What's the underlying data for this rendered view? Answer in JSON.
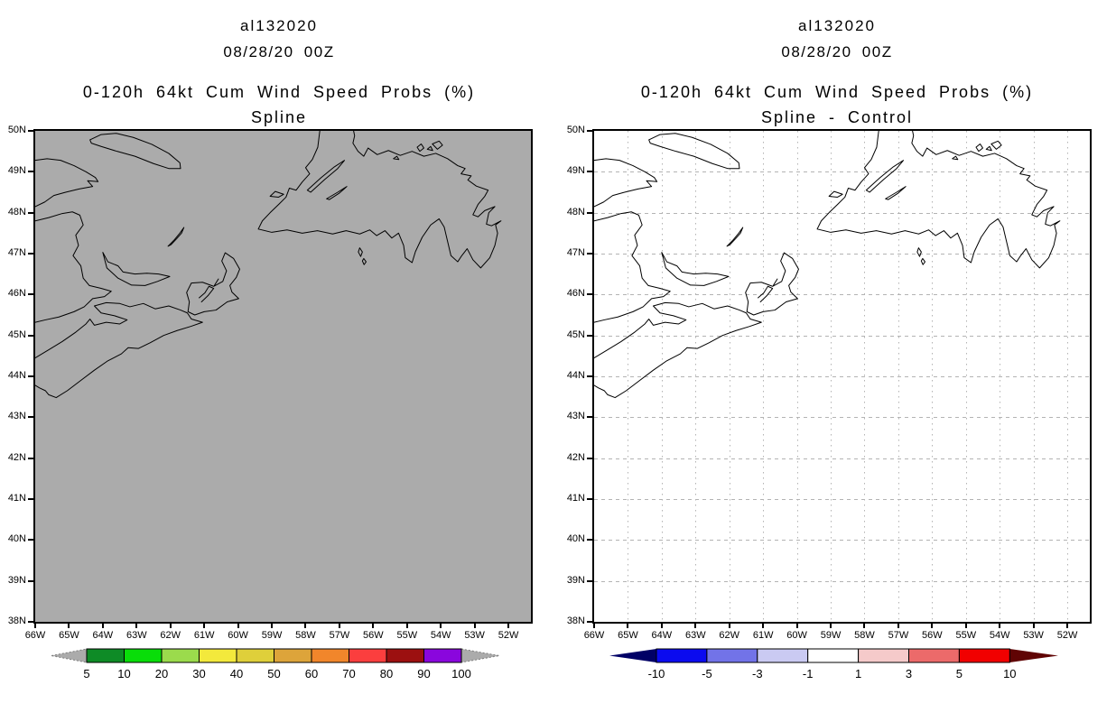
{
  "figure": {
    "background": "#ffffff",
    "map_border_color": "#000000",
    "coastline_color": "#000000"
  },
  "axes": {
    "lat_ticks": [
      "50N",
      "49N",
      "48N",
      "47N",
      "46N",
      "45N",
      "44N",
      "43N",
      "42N",
      "41N",
      "40N",
      "39N",
      "38N"
    ],
    "lon_ticks": [
      "66W",
      "65W",
      "64W",
      "63W",
      "62W",
      "61W",
      "60W",
      "59W",
      "58W",
      "57W",
      "56W",
      "55W",
      "54W",
      "53W",
      "52W"
    ]
  },
  "panels": [
    {
      "header": {
        "storm_id": "al132020",
        "init_time": "08/28/20 00Z"
      },
      "title": "0-120h 64kt Cum Wind Speed Probs (%)",
      "subtitle": "Spline",
      "map": {
        "background": "#ababab",
        "grid": false,
        "grid_color": "#b3b3b3"
      },
      "colorbar": {
        "labels": [
          "5",
          "10",
          "20",
          "30",
          "40",
          "50",
          "60",
          "70",
          "80",
          "90",
          "100"
        ],
        "colors": [
          "#0e8b26",
          "#09dd09",
          "#9bdb4c",
          "#f3e93c",
          "#dfcf3a",
          "#dda43a",
          "#f1862b",
          "#fb3e3e",
          "#9c1010",
          "#8a06dd"
        ],
        "under_arrow": "#ababab",
        "over_arrow": "#ababab",
        "arrow_dashed": true
      }
    },
    {
      "header": {
        "storm_id": "al132020",
        "init_time": "08/28/20 00Z"
      },
      "title": "0-120h 64kt Cum Wind Speed Probs (%)",
      "subtitle": "Spline - Control",
      "map": {
        "background": "#ffffff",
        "grid": true,
        "grid_color": "#b3b3b3"
      },
      "colorbar": {
        "labels": [
          "-10",
          "-5",
          "-3",
          "-1",
          "1",
          "3",
          "5",
          "10"
        ],
        "colors": [
          "#0b0bef",
          "#7273e8",
          "#cacaf2",
          "#ffffff",
          "#f5caca",
          "#ec6a6a",
          "#f10000"
        ],
        "under_arrow": "#000066",
        "over_arrow": "#600404",
        "arrow_dashed": false
      }
    }
  ],
  "chart_data": [
    {
      "type": "heatmap",
      "panel": "left",
      "storm_id": "al132020",
      "init_time": "08/28/20 00Z",
      "quantity": "0-120h 64kt Cum Wind Speed Probs (%)",
      "method": "Spline",
      "units": "%",
      "lon_range": [
        "66W",
        "52W"
      ],
      "lat_range": [
        "38N",
        "50N"
      ],
      "levels": [
        5,
        10,
        20,
        30,
        40,
        50,
        60,
        70,
        80,
        90,
        100
      ],
      "field_summary": "no probability contours visible; entire domain shaded uniform gray (below lowest level 5)"
    },
    {
      "type": "heatmap",
      "panel": "right",
      "storm_id": "al132020",
      "init_time": "08/28/20 00Z",
      "quantity": "0-120h 64kt Cum Wind Speed Probs (%)",
      "method": "Spline - Control",
      "units": "%",
      "lon_range": [
        "66W",
        "52W"
      ],
      "lat_range": [
        "38N",
        "50N"
      ],
      "levels": [
        -10,
        -5,
        -3,
        -1,
        1,
        3,
        5,
        10
      ],
      "field_summary": "difference field blank (white) everywhere, i.e. between -1 and 1 over whole domain"
    }
  ]
}
